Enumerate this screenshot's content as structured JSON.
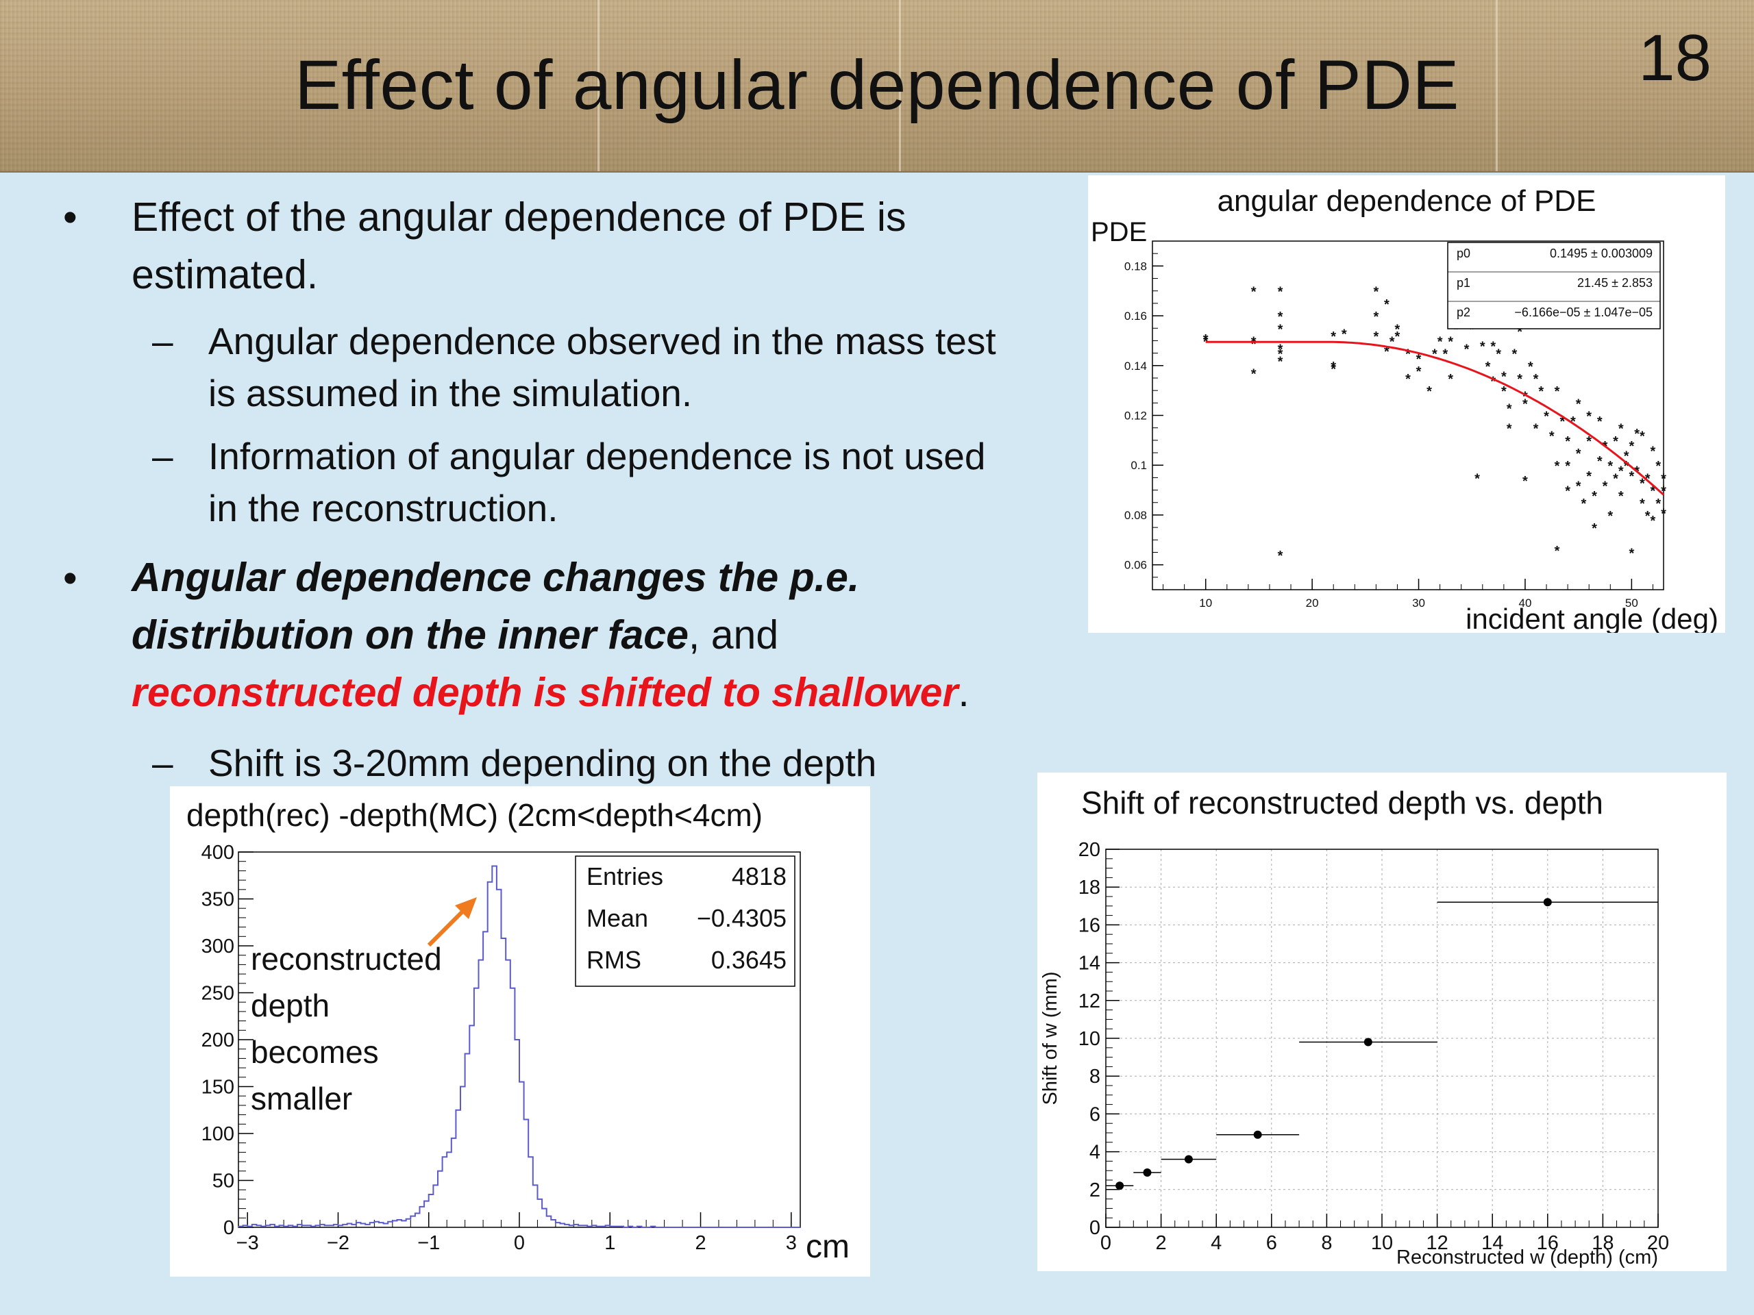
{
  "slide": {
    "title": "Effect of angular dependence of PDE",
    "page_number": "18"
  },
  "bullets": {
    "b1_line1": "Effect of the  angular dependence  of PDE is",
    "b1_line2": "estimated.",
    "s1_line1": "Angular dependence observed in the mass test",
    "s1_line2": "is assumed in the simulation.",
    "s2_line1": "Information of angular dependence is not  used",
    "s2_line2": "in the reconstruction.",
    "b2_line1": "Angular dependence changes the p.e.",
    "b2_line2_bold": "distribution on the inner face",
    "b2_line2_rest": ", and",
    "b2_line3_red": "reconstructed depth is shifted to shallower",
    "b2_line3_end": ".",
    "s3": "Shift is 3-20mm depending on the depth",
    "bullet_symbol": "•",
    "dash_symbol": "–"
  },
  "chart_data": [
    {
      "id": "pde",
      "type": "scatter",
      "title": "angular dependence of PDE",
      "ylabel": "PDE",
      "xlabel": "incident angle (deg)",
      "xlim": [
        5,
        53
      ],
      "ylim": [
        0.05,
        0.19
      ],
      "xticks": [
        10,
        20,
        30,
        40,
        50
      ],
      "yticks": [
        0.06,
        0.08,
        0.1,
        0.12,
        0.14,
        0.16,
        0.18
      ],
      "ytick_labels": [
        "0.06",
        "0.08",
        "0.1",
        "0.12",
        "0.14",
        "0.16",
        "0.18"
      ],
      "stats": [
        {
          "name": "p0",
          "value": "0.1495 ± 0.003009"
        },
        {
          "name": "p1",
          "value": "21.45 ± 2.853"
        },
        {
          "name": "p2",
          "value": "−6.166e−05 ± 1.047e−05"
        }
      ],
      "fit": {
        "p0": 0.1495,
        "p1": 21.45,
        "p2": -6.166e-05,
        "x_start": 10,
        "x_end": 53,
        "color": "#e8141b"
      },
      "points": [
        [
          10,
          0.15
        ],
        [
          10,
          0.151
        ],
        [
          14.5,
          0.149
        ],
        [
          14.5,
          0.137
        ],
        [
          14.5,
          0.17
        ],
        [
          14.5,
          0.15
        ],
        [
          17,
          0.17
        ],
        [
          17,
          0.16
        ],
        [
          17,
          0.155
        ],
        [
          17,
          0.145
        ],
        [
          17,
          0.147
        ],
        [
          17,
          0.142
        ],
        [
          17,
          0.064
        ],
        [
          22,
          0.152
        ],
        [
          22,
          0.14
        ],
        [
          22,
          0.139
        ],
        [
          23,
          0.153
        ],
        [
          26,
          0.16
        ],
        [
          26,
          0.17
        ],
        [
          26,
          0.152
        ],
        [
          27,
          0.165
        ],
        [
          27,
          0.146
        ],
        [
          27.5,
          0.15
        ],
        [
          28,
          0.152
        ],
        [
          28,
          0.155
        ],
        [
          29,
          0.145
        ],
        [
          29,
          0.135
        ],
        [
          30,
          0.138
        ],
        [
          30,
          0.143
        ],
        [
          31,
          0.13
        ],
        [
          31.5,
          0.145
        ],
        [
          32,
          0.15
        ],
        [
          32.5,
          0.145
        ],
        [
          33,
          0.15
        ],
        [
          33,
          0.135
        ],
        [
          33.5,
          0.155
        ],
        [
          34,
          0.167
        ],
        [
          34.5,
          0.147
        ],
        [
          35,
          0.155
        ],
        [
          35.5,
          0.16
        ],
        [
          35.5,
          0.095
        ],
        [
          36,
          0.148
        ],
        [
          36.5,
          0.14
        ],
        [
          37,
          0.134
        ],
        [
          37,
          0.148
        ],
        [
          37.5,
          0.145
        ],
        [
          38,
          0.13
        ],
        [
          38,
          0.136
        ],
        [
          38.5,
          0.123
        ],
        [
          38.5,
          0.115
        ],
        [
          39,
          0.145
        ],
        [
          39,
          0.158
        ],
        [
          39.5,
          0.154
        ],
        [
          39.5,
          0.135
        ],
        [
          40,
          0.094
        ],
        [
          40,
          0.125
        ],
        [
          40,
          0.128
        ],
        [
          40.5,
          0.14
        ],
        [
          41,
          0.135
        ],
        [
          41,
          0.115
        ],
        [
          41.5,
          0.13
        ],
        [
          42,
          0.12
        ],
        [
          42.5,
          0.112
        ],
        [
          43,
          0.13
        ],
        [
          43,
          0.1
        ],
        [
          43,
          0.066
        ],
        [
          43.5,
          0.118
        ],
        [
          44,
          0.11
        ],
        [
          44,
          0.09
        ],
        [
          44,
          0.1
        ],
        [
          44.5,
          0.118
        ],
        [
          45,
          0.125
        ],
        [
          45,
          0.105
        ],
        [
          45,
          0.092
        ],
        [
          45.5,
          0.085
        ],
        [
          46,
          0.12
        ],
        [
          46,
          0.11
        ],
        [
          46,
          0.096
        ],
        [
          46.5,
          0.088
        ],
        [
          46.5,
          0.075
        ],
        [
          47,
          0.102
        ],
        [
          47,
          0.118
        ],
        [
          47.5,
          0.108
        ],
        [
          47.5,
          0.092
        ],
        [
          48,
          0.1
        ],
        [
          48,
          0.08
        ],
        [
          48.5,
          0.095
        ],
        [
          48.5,
          0.11
        ],
        [
          49,
          0.115
        ],
        [
          49,
          0.098
        ],
        [
          49,
          0.088
        ],
        [
          49.5,
          0.1
        ],
        [
          49.5,
          0.104
        ],
        [
          50,
          0.108
        ],
        [
          50,
          0.096
        ],
        [
          50,
          0.065
        ],
        [
          50.5,
          0.098
        ],
        [
          50.5,
          0.113
        ],
        [
          51,
          0.112
        ],
        [
          51,
          0.093
        ],
        [
          51,
          0.085
        ],
        [
          51.5,
          0.08
        ],
        [
          51.5,
          0.095
        ],
        [
          52,
          0.106
        ],
        [
          52,
          0.09
        ],
        [
          52,
          0.078
        ],
        [
          52.5,
          0.1
        ],
        [
          52.5,
          0.085
        ],
        [
          53,
          0.09
        ],
        [
          53,
          0.095
        ],
        [
          53,
          0.081
        ]
      ]
    },
    {
      "id": "hist",
      "type": "histogram",
      "title": "depth(rec) -depth(MC) (2cm<depth<4cm)",
      "xlabel": "cm",
      "xlim": [
        -3.1,
        3.1
      ],
      "ylim": [
        0,
        400
      ],
      "xticks": [
        -3,
        -2,
        -1,
        0,
        1,
        2,
        3
      ],
      "xtick_labels": [
        "−3",
        "−2",
        "−1",
        "0",
        "1",
        "2",
        "3"
      ],
      "yticks": [
        0,
        50,
        100,
        150,
        200,
        250,
        300,
        350,
        400
      ],
      "stats": [
        {
          "name": "Entries",
          "value": "4818"
        },
        {
          "name": "Mean",
          "value": "−0.4305"
        },
        {
          "name": "RMS",
          "value": "0.3645"
        }
      ],
      "annotation": [
        "reconstructed",
        "depth",
        "becomes",
        "smaller"
      ],
      "bin_start": -3.1,
      "bin_width": 0.05,
      "values": [
        1,
        2,
        1,
        3,
        2,
        1,
        2,
        3,
        1,
        2,
        1,
        2,
        1,
        3,
        2,
        2,
        1,
        2,
        3,
        2,
        2,
        3,
        2,
        3,
        4,
        3,
        5,
        4,
        3,
        5,
        6,
        5,
        4,
        6,
        7,
        8,
        7,
        9,
        12,
        15,
        22,
        28,
        35,
        45,
        60,
        75,
        80,
        95,
        125,
        150,
        185,
        215,
        255,
        285,
        315,
        368,
        385,
        360,
        308,
        285,
        255,
        200,
        155,
        115,
        75,
        45,
        30,
        20,
        12,
        8,
        5,
        4,
        3,
        2,
        3,
        2,
        2,
        1,
        2,
        1,
        1,
        2,
        1,
        1,
        1,
        0,
        1,
        0,
        1,
        0,
        0,
        1,
        0,
        0,
        0,
        0,
        0,
        0,
        0,
        0,
        0,
        0,
        0,
        0,
        0,
        0,
        0,
        0,
        0,
        0,
        0,
        0,
        0,
        0,
        0,
        0,
        0,
        0,
        0,
        0,
        0,
        0,
        0,
        0
      ],
      "color": "#5a5acc"
    },
    {
      "id": "shift",
      "type": "scatter",
      "title": "Shift of reconstructed depth vs. depth",
      "ylabel": "Shift of w (mm)",
      "xlabel": "Reconstructed w (depth) (cm)",
      "xlim": [
        0,
        20
      ],
      "ylim": [
        0,
        20
      ],
      "xticks": [
        0,
        2,
        4,
        6,
        8,
        10,
        12,
        14,
        16,
        18,
        20
      ],
      "yticks": [
        0,
        2,
        4,
        6,
        8,
        10,
        12,
        14,
        16,
        18,
        20
      ],
      "grid": true,
      "points": [
        {
          "x": 0.5,
          "y": 2.2,
          "xerr": 0.5
        },
        {
          "x": 1.5,
          "y": 2.9,
          "xerr": 0.5
        },
        {
          "x": 3,
          "y": 3.6,
          "xerr": 1
        },
        {
          "x": 5.5,
          "y": 4.9,
          "xerr": 1.5
        },
        {
          "x": 9.5,
          "y": 9.8,
          "xerr": 2.5
        },
        {
          "x": 16,
          "y": 17.2,
          "xerr": 4
        }
      ]
    }
  ]
}
